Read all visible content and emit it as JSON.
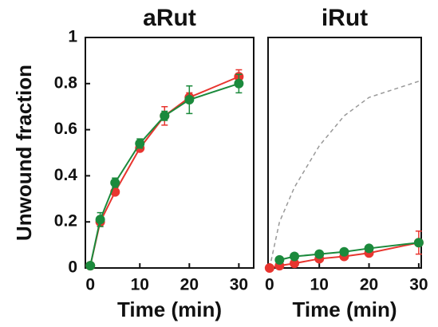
{
  "chart_data": [
    {
      "type": "line",
      "title": "aRut",
      "xlabel": "Time (min)",
      "ylabel": "Unwound fraction",
      "x": [
        0,
        2,
        5,
        10,
        15,
        20,
        30
      ],
      "xlim": [
        -1,
        33
      ],
      "xticks": [
        0,
        10,
        20,
        30
      ],
      "ylim": [
        0,
        1
      ],
      "yticks": [
        0,
        0.2,
        0.4,
        0.6,
        0.8,
        1
      ],
      "series": [
        {
          "color": "#e8352f",
          "values": [
            0.01,
            0.2,
            0.33,
            0.52,
            0.66,
            0.74,
            0.83
          ],
          "errors": [
            0.01,
            0.02,
            0.01,
            0.01,
            0.04,
            0.02,
            0.03
          ]
        },
        {
          "color": "#1b8a3c",
          "values": [
            0.01,
            0.21,
            0.37,
            0.54,
            0.66,
            0.73,
            0.8
          ],
          "errors": [
            0.01,
            0.03,
            0.02,
            0.02,
            0.02,
            0.06,
            0.04
          ]
        }
      ]
    },
    {
      "type": "line",
      "title": "iRut",
      "xlabel": "Time (min)",
      "x": [
        0,
        2,
        5,
        10,
        15,
        20,
        30
      ],
      "xlim": [
        -0.3,
        30.5
      ],
      "xticks": [
        0,
        10,
        20,
        30
      ],
      "ylim": [
        0,
        1
      ],
      "series": [
        {
          "color": "#999999",
          "dashed": true,
          "values": [
            0,
            0.2,
            0.35,
            0.53,
            0.66,
            0.74,
            0.81
          ]
        },
        {
          "color": "#e8352f",
          "values": [
            0,
            0.01,
            0.02,
            0.04,
            0.05,
            0.065,
            0.11
          ],
          "errors": [
            0.005,
            0.005,
            0.005,
            0.01,
            0.01,
            0.01,
            0.05
          ]
        },
        {
          "color": "#1b8a3c",
          "values": [
            null,
            0.035,
            0.05,
            0.06,
            0.07,
            0.085,
            0.11
          ],
          "errors": [
            null,
            0.005,
            0.005,
            0.005,
            0.005,
            0.01,
            0.01
          ]
        }
      ]
    }
  ]
}
